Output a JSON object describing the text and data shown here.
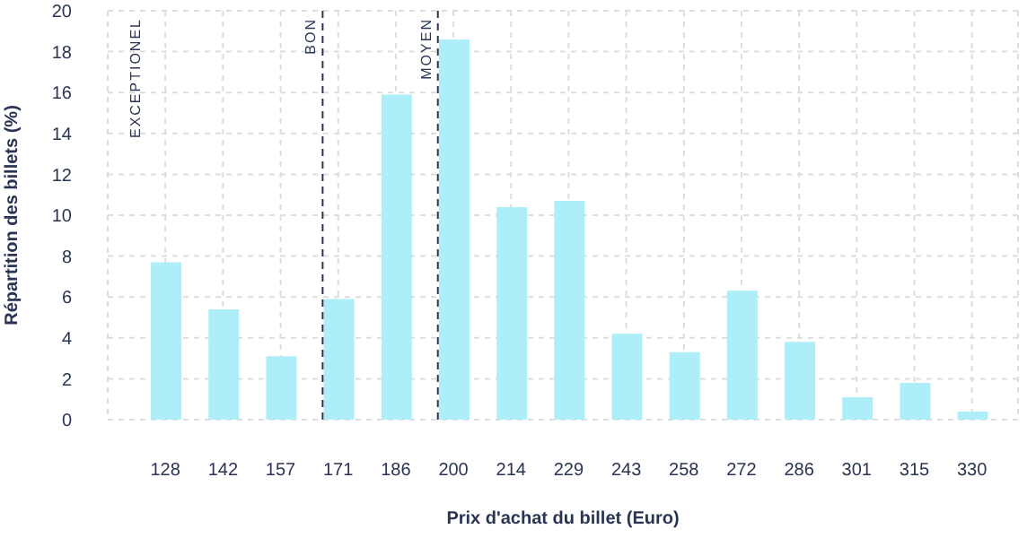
{
  "chart_data": {
    "type": "bar",
    "xlabel": "Prix d'achat du billet (Euro)",
    "ylabel": "Répartition des billets (%)",
    "categories": [
      "128",
      "142",
      "157",
      "171",
      "186",
      "200",
      "214",
      "229",
      "243",
      "258",
      "272",
      "286",
      "301",
      "315",
      "330"
    ],
    "values": [
      7.7,
      5.4,
      3.1,
      5.9,
      15.9,
      18.6,
      10.4,
      10.7,
      4.2,
      3.3,
      6.3,
      3.8,
      1.1,
      1.8,
      0.4
    ],
    "color": "#aeeef8",
    "ylim": [
      0,
      20
    ],
    "yticks": [
      0,
      2,
      4,
      6,
      8,
      10,
      12,
      14,
      16,
      18,
      20
    ],
    "grid": true,
    "ref_lines": [
      {
        "axis": "x",
        "value": "171",
        "label": "BON",
        "color": "#2b3553",
        "line_style": "dashed"
      },
      {
        "axis": "x",
        "value": "200",
        "label": "MOYEN",
        "color": "#2b3553",
        "line_style": "dashed"
      }
    ],
    "annotations": [
      "EXCEPTIONEL"
    ]
  }
}
